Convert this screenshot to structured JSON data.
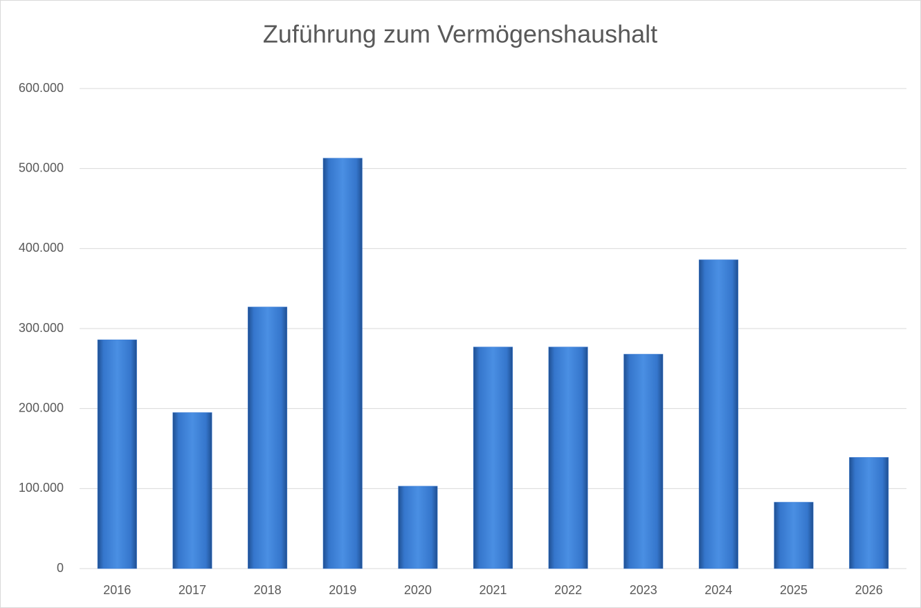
{
  "chart_data": {
    "type": "bar",
    "title": "Zuführung zum Vermögenshaushalt",
    "categories": [
      "2016",
      "2017",
      "2018",
      "2019",
      "2020",
      "2021",
      "2022",
      "2023",
      "2024",
      "2025",
      "2026"
    ],
    "values": [
      286000,
      195000,
      327000,
      513000,
      103000,
      277000,
      277000,
      268000,
      386000,
      83000,
      139000
    ],
    "color": "#3a7bd5",
    "ylim": [
      0,
      600000
    ],
    "yticks": [
      0,
      {
        "value": 100000,
        "label": "100.000"
      },
      {
        "value": 200000,
        "label": "200.000"
      },
      {
        "value": 300000,
        "label": "300.000"
      },
      {
        "value": 400000,
        "label": "400.000"
      },
      {
        "value": 500000,
        "label": "500.000"
      },
      {
        "value": 600000,
        "label": "600.000"
      }
    ],
    "grid": true
  }
}
